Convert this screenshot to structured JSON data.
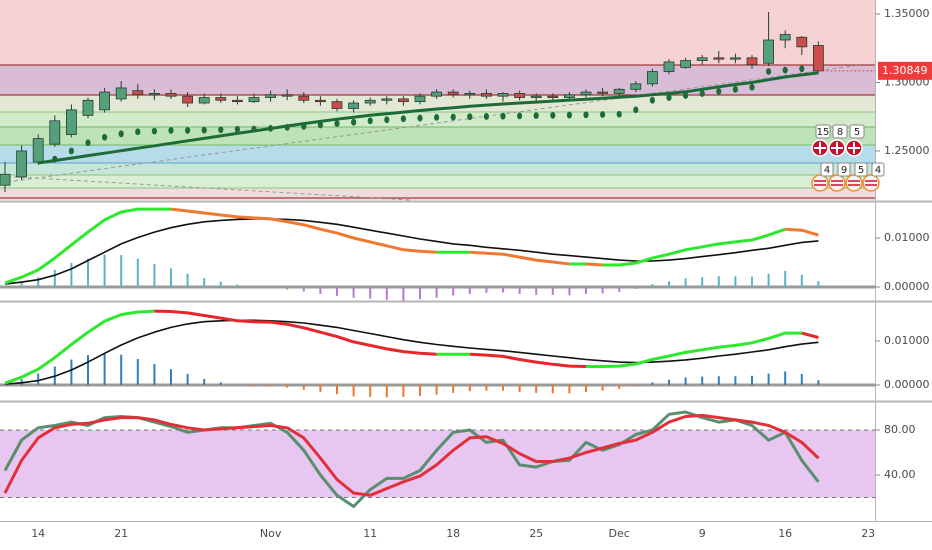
{
  "chart_data": [
    {
      "type": "candlestick",
      "ylim": [
        1.2142,
        1.3602
      ],
      "yticks": [
        {
          "value": 1.25,
          "label": "1.25000"
        },
        {
          "value": 1.3,
          "label": "1.30000"
        },
        {
          "value": 1.35,
          "label": "1.35000"
        }
      ],
      "up_color": "#53a07a",
      "down_color": "#cc4b4b",
      "open": [
        1.225,
        1.231,
        1.242,
        1.255,
        1.262,
        1.276,
        1.28,
        1.288,
        1.294,
        1.291,
        1.292,
        1.29,
        1.285,
        1.289,
        1.287,
        1.286,
        1.289,
        1.291,
        1.29,
        1.287,
        1.286,
        1.281,
        1.285,
        1.287,
        1.288,
        1.286,
        1.29,
        1.293,
        1.291,
        1.292,
        1.29,
        1.292,
        1.289,
        1.29,
        1.289,
        1.291,
        1.293,
        1.292,
        1.295,
        1.299,
        1.308,
        1.311,
        1.316,
        1.318,
        1.317,
        1.318,
        1.314,
        1.331,
        1.333,
        1.327,
        null,
        null,
        null
      ],
      "high": [
        1.242,
        1.254,
        1.262,
        1.276,
        1.284,
        1.289,
        1.296,
        1.301,
        1.299,
        1.295,
        1.295,
        1.293,
        1.292,
        1.292,
        1.29,
        1.292,
        1.294,
        1.295,
        1.293,
        1.29,
        1.288,
        1.287,
        1.289,
        1.29,
        1.29,
        1.292,
        1.295,
        1.295,
        1.294,
        1.295,
        1.293,
        1.294,
        1.292,
        1.292,
        1.293,
        1.295,
        1.296,
        1.296,
        1.301,
        1.31,
        1.317,
        1.318,
        1.32,
        1.323,
        1.321,
        1.32,
        1.3515,
        1.338,
        1.334,
        1.33,
        null,
        null,
        null
      ],
      "low": [
        1.22,
        1.229,
        1.24,
        1.253,
        1.26,
        1.274,
        1.278,
        1.286,
        1.288,
        1.287,
        1.288,
        1.282,
        1.284,
        1.285,
        1.284,
        1.285,
        1.286,
        1.287,
        1.285,
        1.283,
        1.279,
        1.278,
        1.283,
        1.284,
        1.283,
        1.284,
        1.288,
        1.289,
        1.288,
        1.288,
        1.286,
        1.287,
        1.286,
        1.287,
        1.287,
        1.289,
        1.29,
        1.29,
        1.293,
        1.297,
        1.306,
        1.31,
        1.313,
        1.314,
        1.314,
        1.31,
        1.312,
        1.325,
        1.32,
        1.307,
        null,
        null,
        null
      ],
      "close": [
        1.233,
        1.25,
        1.259,
        1.272,
        1.28,
        1.287,
        1.293,
        1.296,
        1.291,
        1.292,
        1.29,
        1.285,
        1.289,
        1.287,
        1.286,
        1.289,
        1.291,
        1.29,
        1.287,
        1.286,
        1.281,
        1.285,
        1.287,
        1.288,
        1.286,
        1.29,
        1.293,
        1.291,
        1.292,
        1.29,
        1.292,
        1.289,
        1.29,
        1.289,
        1.291,
        1.293,
        1.292,
        1.295,
        1.299,
        1.308,
        1.315,
        1.316,
        1.318,
        1.317,
        1.318,
        1.313,
        1.331,
        1.335,
        1.326,
        1.30849,
        null,
        null,
        null
      ],
      "ma": {
        "color": "#1e6b3a",
        "values": [
          null,
          null,
          1.2412,
          1.243,
          1.2448,
          1.2466,
          1.2484,
          1.2502,
          1.252,
          1.2538,
          1.2556,
          1.2574,
          1.2592,
          1.261,
          1.2628,
          1.2646,
          1.2664,
          1.2682,
          1.27,
          1.2716,
          1.2732,
          1.2746,
          1.276,
          1.2772,
          1.2784,
          1.2795,
          1.2806,
          1.2816,
          1.2826,
          1.2835,
          1.2843,
          1.285,
          1.2857,
          1.2864,
          1.2871,
          1.2878,
          1.2885,
          1.2892,
          1.29,
          1.291,
          1.292,
          1.2932,
          1.295,
          1.2968,
          1.2985,
          1.3,
          1.302,
          1.304,
          1.3055,
          1.307,
          null,
          null,
          null
        ]
      },
      "dots": {
        "color": "#1e6b3a",
        "values": [
          null,
          null,
          null,
          1.244,
          1.25,
          1.256,
          1.26,
          1.2625,
          1.264,
          1.2645,
          1.265,
          1.265,
          1.2652,
          1.2655,
          1.2658,
          1.266,
          1.2665,
          1.2672,
          1.268,
          1.269,
          1.27,
          1.271,
          1.272,
          1.2728,
          1.2735,
          1.274,
          1.2745,
          1.2748,
          1.275,
          1.2752,
          1.2754,
          1.2756,
          1.2758,
          1.276,
          1.2762,
          1.2764,
          1.2766,
          1.2768,
          1.28,
          1.287,
          1.289,
          1.2905,
          1.292,
          1.2935,
          1.295,
          1.2965,
          1.308,
          1.309,
          1.31,
          null,
          null,
          null,
          null
        ]
      },
      "last_price": 1.30849,
      "last_price_color": "#ef3b3b",
      "events": {
        "gb": [
          15,
          8,
          5
        ],
        "us": [
          4,
          9,
          5,
          4
        ]
      }
    },
    {
      "type": "macd",
      "ylim": [
        -0.00265,
        0.01714
      ],
      "yticks": [
        {
          "value": 0.01,
          "label": "0.01000"
        },
        {
          "value": 0,
          "label": "0.00000"
        }
      ],
      "macd": {
        "up_color": "#2ee82e",
        "down_color": "#f07830",
        "values": [
          0.0008,
          0.002,
          0.0035,
          0.0059,
          0.0086,
          0.0112,
          0.0137,
          0.0153,
          0.0159,
          0.0159,
          0.0159,
          0.0155,
          0.0151,
          0.0147,
          0.0143,
          0.0141,
          0.0139,
          0.0133,
          0.0127,
          0.0118,
          0.011,
          0.01,
          0.0092,
          0.0084,
          0.0076,
          0.0073,
          0.0071,
          0.0071,
          0.0071,
          0.0069,
          0.0067,
          0.0061,
          0.0055,
          0.0051,
          0.0047,
          0.0047,
          0.0045,
          0.0045,
          0.0049,
          0.0059,
          0.0067,
          0.0076,
          0.0082,
          0.0088,
          0.0092,
          0.0096,
          0.0106,
          0.0118,
          0.0116,
          0.0106,
          null,
          null,
          null
        ]
      },
      "signal": {
        "color": "#111111",
        "values": [
          0.0006,
          0.001,
          0.0015,
          0.0024,
          0.0037,
          0.0054,
          0.0071,
          0.0088,
          0.0101,
          0.0112,
          0.0121,
          0.0128,
          0.0133,
          0.0136,
          0.0138,
          0.0139,
          0.0139,
          0.0138,
          0.0136,
          0.0132,
          0.0128,
          0.0122,
          0.0116,
          0.011,
          0.0104,
          0.0098,
          0.0093,
          0.0088,
          0.0085,
          0.0081,
          0.0078,
          0.0075,
          0.0071,
          0.0067,
          0.0064,
          0.0061,
          0.0058,
          0.0055,
          0.0053,
          0.0053,
          0.0055,
          0.0058,
          0.0062,
          0.0066,
          0.007,
          0.0075,
          0.0079,
          0.0085,
          0.0091,
          0.0094,
          null,
          null,
          null
        ]
      },
      "histogram": {
        "up_color": "#5ab4c8",
        "down_color": "#b77ad0",
        "values": [
          0.0002,
          0.001,
          0.002,
          0.0035,
          0.0049,
          0.0058,
          0.0066,
          0.0065,
          0.0058,
          0.0047,
          0.0038,
          0.0027,
          0.0018,
          0.0011,
          0.0005,
          0.0002,
          0.0,
          -0.0005,
          -0.0009,
          -0.0014,
          -0.0018,
          -0.0022,
          -0.0024,
          -0.0026,
          -0.0028,
          -0.0025,
          -0.0022,
          -0.0017,
          -0.0014,
          -0.0012,
          -0.0011,
          -0.0014,
          -0.0016,
          -0.0016,
          -0.0017,
          -0.0014,
          -0.0013,
          -0.001,
          -0.0004,
          0.0006,
          0.0012,
          0.0018,
          0.002,
          0.0022,
          0.0022,
          0.0021,
          0.0027,
          0.0033,
          0.0025,
          0.0012,
          null,
          null,
          null
        ]
      }
    },
    {
      "type": "macd",
      "ylim": [
        -0.00341,
        0.01864
      ],
      "yticks": [
        {
          "value": 0.01,
          "label": "0.01000"
        },
        {
          "value": 0,
          "label": "0.00000"
        }
      ],
      "macd": {
        "up_color": "#2ee82e",
        "down_color": "#e8252b",
        "values": [
          0.0004,
          0.0018,
          0.0036,
          0.0062,
          0.0092,
          0.012,
          0.0145,
          0.016,
          0.0166,
          0.0168,
          0.0167,
          0.0164,
          0.0158,
          0.0152,
          0.0146,
          0.0144,
          0.0143,
          0.0138,
          0.013,
          0.012,
          0.011,
          0.0098,
          0.009,
          0.0082,
          0.0076,
          0.0072,
          0.007,
          0.007,
          0.007,
          0.0068,
          0.0065,
          0.0058,
          0.0052,
          0.0047,
          0.0043,
          0.0042,
          0.0042,
          0.0043,
          0.0048,
          0.0058,
          0.0066,
          0.0074,
          0.008,
          0.0086,
          0.009,
          0.0096,
          0.0106,
          0.0118,
          0.0118,
          0.0108,
          null,
          null,
          null
        ]
      },
      "signal": {
        "color": "#111111",
        "values": [
          0.0002,
          0.0005,
          0.001,
          0.002,
          0.0034,
          0.0052,
          0.0072,
          0.0091,
          0.0107,
          0.012,
          0.0131,
          0.0139,
          0.0144,
          0.0146,
          0.0147,
          0.0147,
          0.0146,
          0.0144,
          0.0141,
          0.0136,
          0.0131,
          0.0124,
          0.0117,
          0.011,
          0.0103,
          0.0097,
          0.0092,
          0.0088,
          0.0084,
          0.0081,
          0.0078,
          0.0074,
          0.007,
          0.0066,
          0.0062,
          0.0058,
          0.0055,
          0.0052,
          0.0051,
          0.0052,
          0.0054,
          0.0057,
          0.0061,
          0.0066,
          0.007,
          0.0075,
          0.008,
          0.0087,
          0.0093,
          0.0097,
          null,
          null,
          null
        ]
      },
      "histogram": {
        "up_color": "#2e7fc0",
        "down_color": "#f0782a",
        "values": [
          0.0002,
          0.0013,
          0.0026,
          0.0042,
          0.0058,
          0.0068,
          0.0073,
          0.0069,
          0.0059,
          0.0048,
          0.0036,
          0.0025,
          0.0014,
          0.0006,
          -0.0001,
          -0.0003,
          -0.0003,
          -0.0006,
          -0.0011,
          -0.0016,
          -0.0021,
          -0.0026,
          -0.0027,
          -0.0028,
          -0.0027,
          -0.0025,
          -0.0022,
          -0.0018,
          -0.0014,
          -0.0013,
          -0.0013,
          -0.0016,
          -0.0018,
          -0.0019,
          -0.0019,
          -0.0016,
          -0.0013,
          -0.0009,
          -0.0003,
          0.0006,
          0.0012,
          0.0017,
          0.0019,
          0.002,
          0.002,
          0.0021,
          0.0026,
          0.0031,
          0.0025,
          0.0011,
          null,
          null,
          null
        ]
      }
    },
    {
      "type": "stochastic",
      "ylim": [
        0,
        104
      ],
      "yticks": [
        {
          "value": 80,
          "label": "80.00"
        },
        {
          "value": 40,
          "label": "40.00"
        }
      ],
      "band": [
        20,
        80
      ],
      "band_color": "#e7c6f2",
      "categories": [
        null,
        null,
        "14",
        null,
        null,
        null,
        null,
        "21",
        null,
        null,
        null,
        null,
        null,
        null,
        null,
        null,
        "Nov",
        null,
        null,
        null,
        null,
        null,
        "11",
        null,
        null,
        null,
        null,
        "18",
        null,
        null,
        null,
        null,
        "25",
        null,
        null,
        null,
        null,
        "Dec",
        null,
        null,
        null,
        null,
        "9",
        null,
        null,
        null,
        null,
        "16",
        null,
        null,
        null,
        null,
        "23"
      ],
      "k": {
        "color": "#5a8f6e",
        "values": [
          44,
          71,
          82,
          84,
          87,
          84,
          91,
          92,
          91,
          87,
          83,
          78,
          80,
          82,
          82,
          84,
          86,
          78,
          62,
          40,
          22,
          12,
          27,
          37,
          37,
          44,
          62,
          78,
          80,
          69,
          71,
          49,
          47,
          52,
          53,
          69,
          62,
          67,
          76,
          80,
          94,
          96,
          91,
          87,
          89,
          84,
          71,
          78,
          53,
          34,
          null,
          null,
          null
        ]
      },
      "d": {
        "color": "#e0303a",
        "values": [
          24,
          53,
          73,
          82,
          85,
          86,
          89,
          91,
          91,
          89,
          85,
          82,
          80,
          81,
          82,
          83,
          84,
          82,
          73,
          55,
          36,
          24,
          22,
          28,
          34,
          39,
          49,
          62,
          73,
          74,
          68,
          59,
          52,
          52,
          55,
          60,
          64,
          68,
          71,
          78,
          87,
          92,
          93,
          91,
          89,
          87,
          84,
          78,
          69,
          55,
          null,
          null,
          null
        ]
      }
    }
  ]
}
